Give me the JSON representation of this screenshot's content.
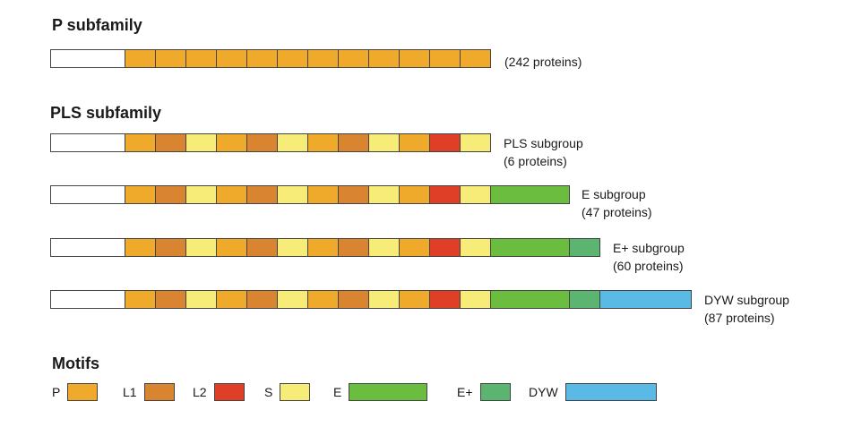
{
  "colors": {
    "P": "#efaa2c",
    "L1": "#d98431",
    "L2": "#de3f26",
    "S": "#f6ec77",
    "E": "#6bbd3f",
    "E+": "#5bb570",
    "DYW": "#5bb9e6",
    "n_terminal": "#ffffff",
    "outline": "#444444"
  },
  "sections": {
    "p_subfamily_title": "P subfamily",
    "pls_subfamily_title": "PLS subfamily",
    "motifs_title": "Motifs"
  },
  "proteins": [
    {
      "id": "p",
      "motifs": [
        "P",
        "P",
        "P",
        "P",
        "P",
        "P",
        "P",
        "P",
        "P",
        "P",
        "P",
        "P"
      ],
      "label_line1": "(242 proteins)",
      "label_line2": ""
    },
    {
      "id": "pls",
      "motifs": [
        "P",
        "L1",
        "S",
        "P",
        "L1",
        "S",
        "P",
        "L1",
        "S",
        "P",
        "L2",
        "S"
      ],
      "label_line1": "PLS subgroup",
      "label_line2": "(6 proteins)"
    },
    {
      "id": "e",
      "motifs": [
        "P",
        "L1",
        "S",
        "P",
        "L1",
        "S",
        "P",
        "L1",
        "S",
        "P",
        "L2",
        "S",
        "E"
      ],
      "label_line1": "E subgroup",
      "label_line2": "(47 proteins)"
    },
    {
      "id": "eplus",
      "motifs": [
        "P",
        "L1",
        "S",
        "P",
        "L1",
        "S",
        "P",
        "L1",
        "S",
        "P",
        "L2",
        "S",
        "E",
        "E+"
      ],
      "label_line1": "E+ subgroup",
      "label_line2": "(60 proteins)"
    },
    {
      "id": "dyw",
      "motifs": [
        "P",
        "L1",
        "S",
        "P",
        "L1",
        "S",
        "P",
        "L1",
        "S",
        "P",
        "L2",
        "S",
        "E",
        "E+",
        "DYW"
      ],
      "label_line1": "DYW subgroup",
      "label_line2": "(87 proteins)"
    }
  ],
  "legend": [
    {
      "key": "P",
      "label": "P"
    },
    {
      "key": "L1",
      "label": "L1"
    },
    {
      "key": "L2",
      "label": "L2"
    },
    {
      "key": "S",
      "label": "S"
    },
    {
      "key": "E",
      "label": "E"
    },
    {
      "key": "E+",
      "label": "E+"
    },
    {
      "key": "DYW",
      "label": "DYW"
    }
  ]
}
